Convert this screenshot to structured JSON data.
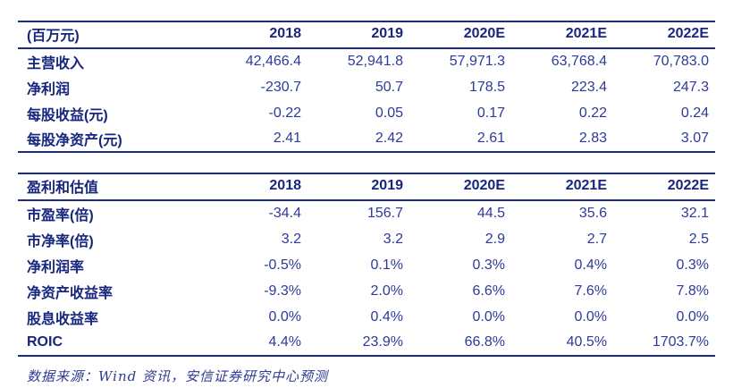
{
  "colors": {
    "rule_navy": "#1c2d85",
    "header_text": "#17267d",
    "value_text": "#2e3a9a",
    "footer_text": "#2d3b94",
    "page_bg": "#ffffff"
  },
  "income_table": {
    "header": [
      "(百万元)",
      "2018",
      "2019",
      "2020E",
      "2021E",
      "2022E"
    ],
    "rows": [
      {
        "label": "主营收入",
        "values": [
          "42,466.4",
          "52,941.8",
          "57,971.3",
          "63,768.4",
          "70,783.0"
        ]
      },
      {
        "label": "净利润",
        "values": [
          "-230.7",
          "50.7",
          "178.5",
          "223.4",
          "247.3"
        ]
      },
      {
        "label": "每股收益(元)",
        "values": [
          "-0.22",
          "0.05",
          "0.17",
          "0.22",
          "0.24"
        ]
      },
      {
        "label": "每股净资产(元)",
        "values": [
          "2.41",
          "2.42",
          "2.61",
          "2.83",
          "3.07"
        ]
      }
    ]
  },
  "valuation_table": {
    "header": [
      "盈利和估值",
      "2018",
      "2019",
      "2020E",
      "2021E",
      "2022E"
    ],
    "rows": [
      {
        "label": "市盈率(倍)",
        "values": [
          "-34.4",
          "156.7",
          "44.5",
          "35.6",
          "32.1"
        ]
      },
      {
        "label": "市净率(倍)",
        "values": [
          "3.2",
          "3.2",
          "2.9",
          "2.7",
          "2.5"
        ]
      },
      {
        "label": "净利润率",
        "values": [
          "-0.5%",
          "0.1%",
          "0.3%",
          "0.4%",
          "0.3%"
        ]
      },
      {
        "label": "净资产收益率",
        "values": [
          "-9.3%",
          "2.0%",
          "6.6%",
          "7.6%",
          "7.8%"
        ]
      },
      {
        "label": "股息收益率",
        "values": [
          "0.0%",
          "0.4%",
          "0.0%",
          "0.0%",
          "0.0%"
        ]
      },
      {
        "label": "ROIC",
        "values": [
          "4.4%",
          "23.9%",
          "66.8%",
          "40.5%",
          "1703.7%"
        ]
      }
    ]
  },
  "footer": {
    "source_note": "数据来源：Wind 资讯，安信证券研究中心预测"
  }
}
